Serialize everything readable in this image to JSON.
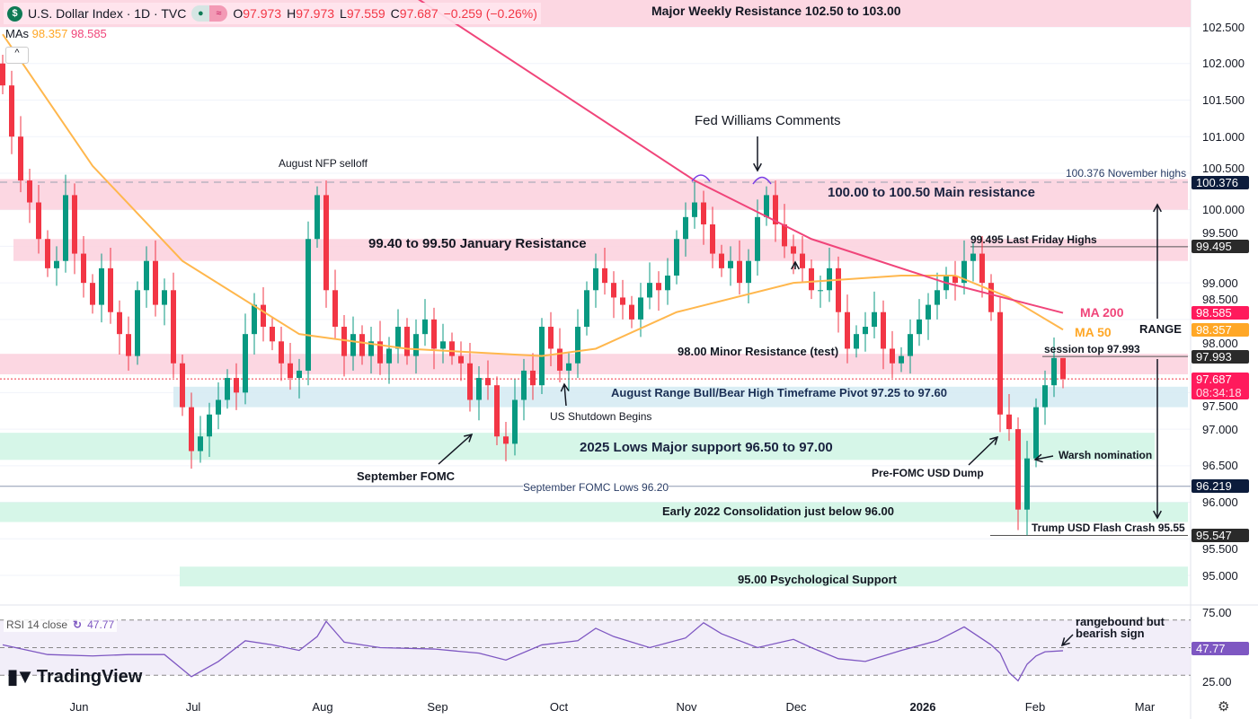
{
  "header": {
    "symbol_icon": "dollar-sign-icon",
    "title": "U.S. Dollar Index · 1D · TVC",
    "o_label": "O",
    "o": "97.973",
    "h_label": "H",
    "h": "97.973",
    "l_label": "L",
    "l": "97.559",
    "c_label": "C",
    "c": "97.687",
    "change": "−0.259 (−0.26%)",
    "mas_label": "MAs",
    "ma50": "98.357",
    "ma200": "98.585",
    "collapse": "^"
  },
  "colors": {
    "up": "#089981",
    "down": "#f23645",
    "ma50": "#ffb74d",
    "ma200": "#f0457a",
    "rsi": "#7e57c2",
    "pink_zone": "#fcd3df",
    "blue_zone": "#d6ebf3",
    "green_zone": "#d2f5e6"
  },
  "price_axis": [
    "102.500",
    "102.000",
    "101.500",
    "101.000",
    "100.500",
    "100.000",
    "99.500",
    "99.000",
    "98.500",
    "98.000",
    "97.500",
    "97.000",
    "96.500",
    "96.000",
    "95.500",
    "95.000"
  ],
  "badges": [
    {
      "value": "100.376",
      "price": 100.376,
      "color": "#0c1c3c"
    },
    {
      "value": "99.495",
      "price": 99.495,
      "color": "#2a2a2a"
    },
    {
      "value": "98.585",
      "price": 98.585,
      "color": "#ff1a5c"
    },
    {
      "value": "98.357",
      "price": 98.357,
      "color": "#ffa726"
    },
    {
      "value": "97.993",
      "price": 97.993,
      "color": "#2a2a2a"
    },
    {
      "value": "97.687",
      "price": 97.687,
      "color": "#ff1a5c",
      "sub": "08:34:18"
    },
    {
      "value": "96.219",
      "price": 96.219,
      "color": "#0c1c3c"
    },
    {
      "value": "95.547",
      "price": 95.547,
      "color": "#2a2a2a"
    }
  ],
  "time_axis": [
    "Jun",
    "Jul",
    "Aug",
    "Sep",
    "Oct",
    "Nov",
    "Dec",
    "2026",
    "Feb",
    "Mar"
  ],
  "rsi": {
    "label": "RSI 14 close",
    "value": "47.77",
    "axis": [
      "75.00",
      "25.00"
    ]
  },
  "logo": "TradingView",
  "zones": [
    {
      "label": "Major Weekly Resistance 102.50 to 103.00",
      "from": 102.5,
      "to": 103.0,
      "type": "pink"
    },
    {
      "label": "100.00 to 100.50 Main resistance",
      "from": 100.0,
      "to": 100.42,
      "type": "pink"
    },
    {
      "label": "99.40 to 99.50 January Resistance",
      "from": 99.3,
      "to": 99.6,
      "type": "pink"
    },
    {
      "label": "98.00 Minor Resistance (test)",
      "from": 97.75,
      "to": 98.03,
      "type": "pink"
    },
    {
      "label": "August Range Bull/Bear High Timeframe Pivot 97.25 to 97.60",
      "from": 97.3,
      "to": 97.58,
      "type": "blue"
    },
    {
      "label": "2025 Lows Major support 96.50 to 97.00",
      "from": 96.58,
      "to": 96.95,
      "type": "green"
    },
    {
      "label": "Early 2022 Consolidation just below 96.00",
      "from": 95.73,
      "to": 96.0,
      "type": "green"
    },
    {
      "label": "95.00 Psychological Support",
      "from": 94.85,
      "to": 95.12,
      "type": "green"
    }
  ],
  "annotations": {
    "nfp": "August NFP selloff",
    "fed": "Fed Williams Comments",
    "shutdown": "US Shutdown Begins",
    "sep_fomc": "September FOMC",
    "sep_lows": "September FOMC Lows 96.20",
    "pre_fomc": "Pre-FOMC USD Dump",
    "warsh": "Warsh nomination",
    "flash": "Trump USD Flash Crash 95.55",
    "session_top": "session top 97.993",
    "friday": "99.495 Last Friday Highs",
    "nov_highs": "100.376 November highs",
    "ma200": "MA 200",
    "ma50": "MA 50",
    "range": "RANGE",
    "rsi_note1": "rangebound but",
    "rsi_note2": "bearish sign"
  },
  "chart_data": {
    "type": "candlestick",
    "title": "U.S. Dollar Index · 1D · TVC",
    "ylim": [
      94.5,
      103.0
    ],
    "rsi_ylim": [
      20,
      80
    ],
    "closes": [
      101.7,
      101.0,
      100.4,
      100.1,
      99.6,
      99.2,
      99.3,
      100.2,
      99.4,
      99.0,
      98.7,
      99.2,
      98.6,
      98.3,
      98.0,
      98.9,
      99.3,
      98.7,
      98.9,
      97.9,
      97.3,
      96.7,
      96.9,
      97.2,
      97.4,
      97.7,
      97.5,
      98.3,
      98.7,
      98.4,
      98.2,
      97.9,
      97.7,
      97.8,
      99.6,
      100.2,
      98.9,
      98.4,
      98.0,
      98.3,
      98.0,
      98.2,
      97.9,
      98.1,
      98.4,
      98.0,
      98.3,
      98.5,
      98.1,
      98.2,
      98.0,
      97.9,
      97.4,
      97.7,
      97.6,
      96.9,
      96.8,
      97.4,
      97.8,
      97.6,
      98.4,
      98.1,
      97.8,
      97.9,
      98.4,
      98.9,
      99.2,
      99.0,
      98.8,
      98.7,
      98.5,
      98.8,
      99.0,
      98.9,
      99.1,
      99.6,
      99.9,
      100.1,
      99.8,
      99.4,
      99.2,
      99.3,
      99.0,
      99.3,
      99.9,
      100.2,
      99.8,
      99.5,
      99.4,
      99.2,
      98.9,
      98.9,
      99.2,
      98.6,
      98.1,
      98.3,
      98.4,
      98.6,
      98.1,
      97.9,
      98.0,
      98.3,
      98.5,
      98.7,
      98.9,
      99.1,
      99.0,
      99.3,
      99.4,
      99.0,
      98.6,
      97.2,
      97.0,
      95.9,
      96.6,
      97.3,
      97.6,
      97.973
    ],
    "last_bar": {
      "open": 97.973,
      "high": 97.973,
      "low": 97.559,
      "close": 97.687
    },
    "ma50": [
      [
        0,
        102.4
      ],
      [
        10,
        100.6
      ],
      [
        20,
        99.3
      ],
      [
        33,
        98.3
      ],
      [
        45,
        98.1
      ],
      [
        60,
        98.0
      ],
      [
        66,
        98.1
      ],
      [
        75,
        98.6
      ],
      [
        88,
        99.0
      ],
      [
        100,
        99.1
      ],
      [
        106,
        99.1
      ],
      [
        112,
        98.8
      ],
      [
        118,
        98.36
      ]
    ],
    "ma200": [
      [
        46,
        102.9
      ],
      [
        77,
        100.4
      ],
      [
        90,
        99.6
      ],
      [
        105,
        99.0
      ],
      [
        118,
        98.59
      ]
    ],
    "rsi_values": [
      [
        0,
        52
      ],
      [
        5,
        45
      ],
      [
        10,
        44
      ],
      [
        14,
        45
      ],
      [
        18,
        45
      ],
      [
        21,
        29
      ],
      [
        24,
        40
      ],
      [
        27,
        55
      ],
      [
        30,
        52
      ],
      [
        33,
        48
      ],
      [
        35,
        58
      ],
      [
        36,
        69
      ],
      [
        38,
        54
      ],
      [
        42,
        50
      ],
      [
        48,
        49
      ],
      [
        53,
        46
      ],
      [
        56,
        41
      ],
      [
        60,
        52
      ],
      [
        64,
        55
      ],
      [
        66,
        64
      ],
      [
        68,
        58
      ],
      [
        72,
        50
      ],
      [
        76,
        57
      ],
      [
        78,
        68
      ],
      [
        80,
        60
      ],
      [
        84,
        50
      ],
      [
        88,
        56
      ],
      [
        90,
        50
      ],
      [
        93,
        42
      ],
      [
        96,
        40
      ],
      [
        100,
        48
      ],
      [
        104,
        55
      ],
      [
        107,
        65
      ],
      [
        110,
        52
      ],
      [
        111,
        46
      ],
      [
        112,
        32
      ],
      [
        113,
        26
      ],
      [
        114,
        38
      ],
      [
        115,
        44
      ],
      [
        116,
        47
      ],
      [
        118,
        47.77
      ]
    ],
    "rsi_levels": [
      70,
      50,
      30
    ],
    "levels": [
      {
        "price": 100.376,
        "style": "dashed"
      },
      {
        "price": 99.495,
        "style": "solid"
      },
      {
        "price": 97.993,
        "style": "solid"
      },
      {
        "price": 97.687,
        "style": "dotted"
      },
      {
        "price": 96.219,
        "style": "solid"
      },
      {
        "price": 95.547,
        "style": "solid"
      }
    ]
  }
}
